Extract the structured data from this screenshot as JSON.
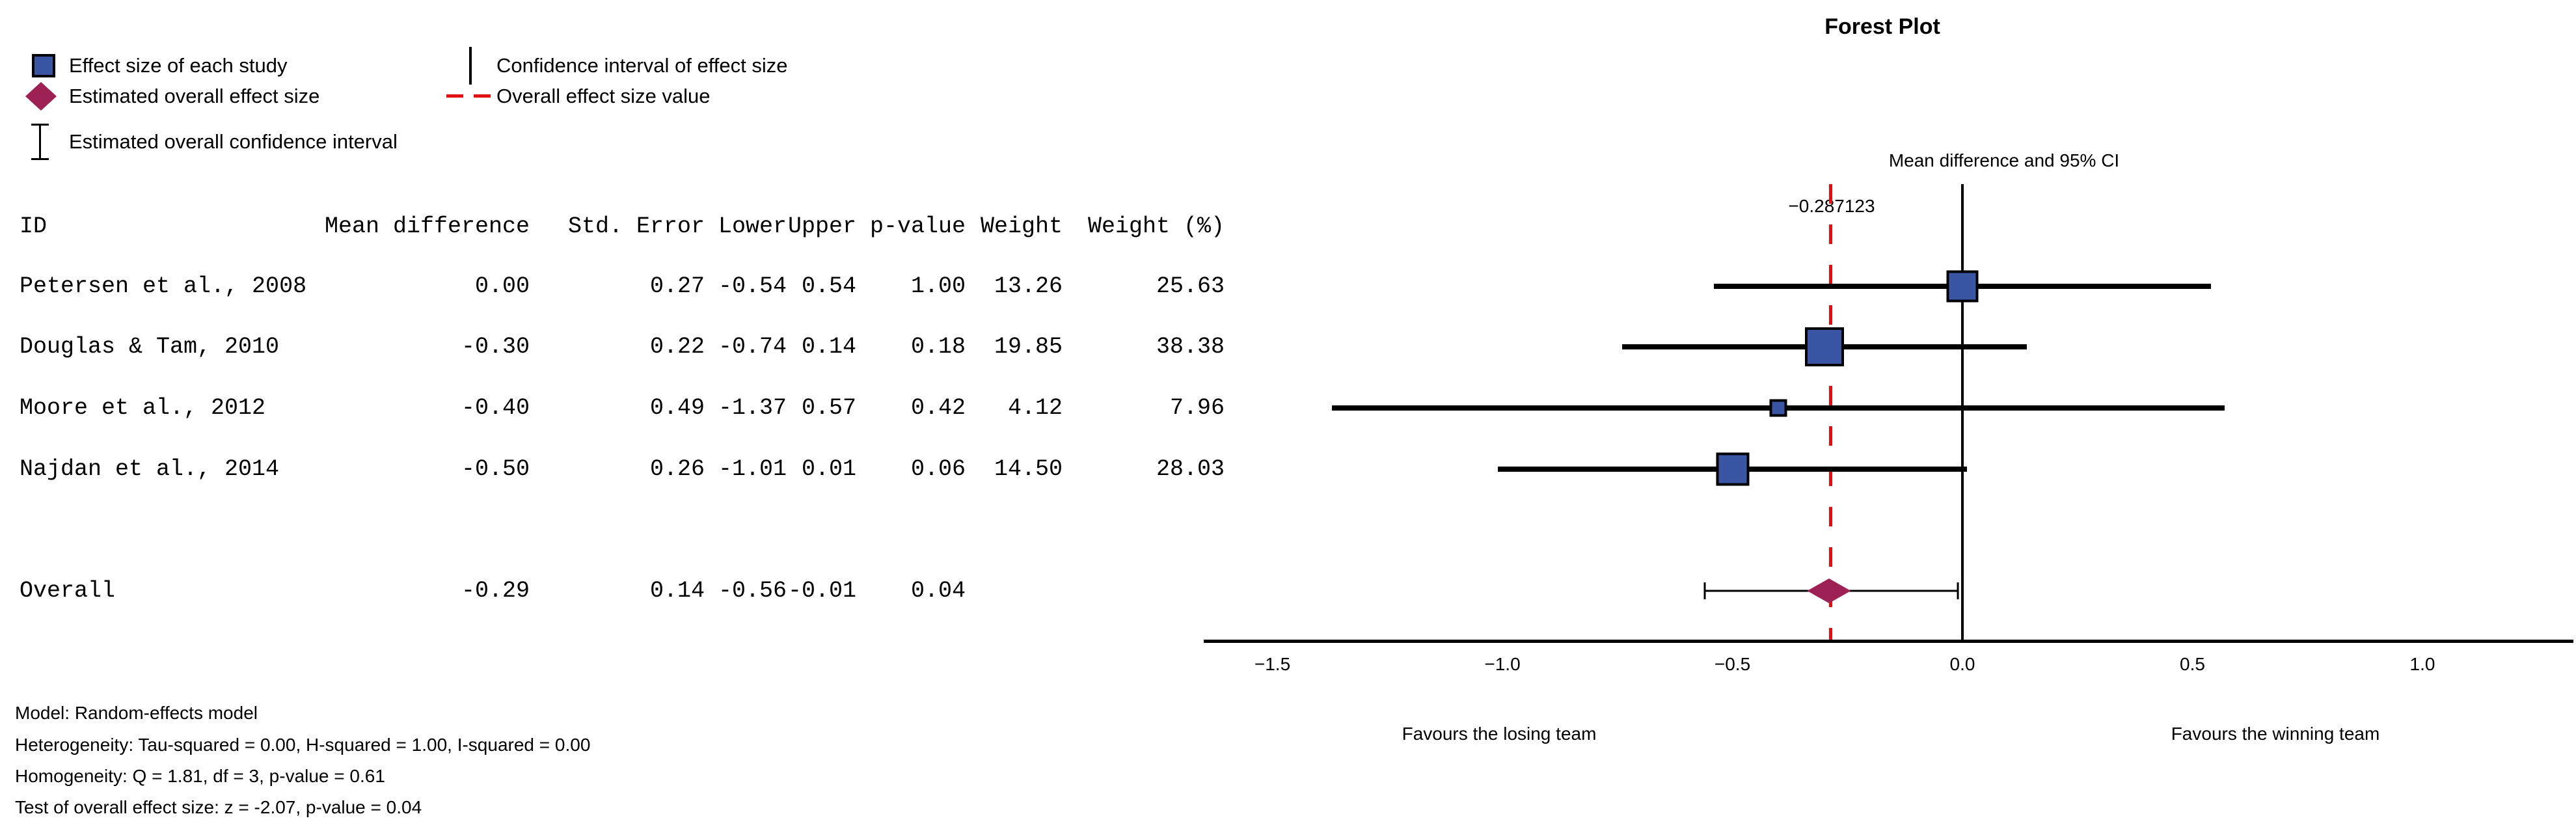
{
  "legend": {
    "left_items": [
      {
        "marker": "blue-square-marker",
        "label": "Effect size of each study"
      },
      {
        "marker": "crimson-diamond-marker",
        "label": "Estimated overall effect size"
      },
      {
        "marker": "ibeam-marker",
        "label": "Estimated overall confidence interval"
      }
    ],
    "right_items": [
      {
        "marker": "black-vline-marker",
        "label": "Confidence interval of effect size"
      },
      {
        "marker": "red-dash-marker",
        "label": "Overall effect size value"
      }
    ]
  },
  "table": {
    "headers": [
      "ID",
      "Mean difference",
      "Std. Error",
      "Lower",
      "Upper",
      "p-value",
      "Weight",
      "Weight (%)"
    ],
    "rows": [
      {
        "cells": [
          "Petersen et al., 2008",
          "0.00",
          "0.27",
          "-0.54",
          "0.54",
          "1.00",
          "13.26",
          "25.63"
        ]
      },
      {
        "cells": [
          "Douglas & Tam, 2010",
          "-0.30",
          "0.22",
          "-0.74",
          "0.14",
          "0.18",
          "19.85",
          "38.38"
        ]
      },
      {
        "cells": [
          "Moore et al., 2012",
          "-0.40",
          "0.49",
          "-1.37",
          "0.57",
          "0.42",
          "4.12",
          "7.96"
        ]
      },
      {
        "cells": [
          "Najdan et al., 2014",
          "-0.50",
          "0.26",
          "-1.01",
          "0.01",
          "0.06",
          "14.50",
          "28.03"
        ]
      }
    ],
    "overall_row": {
      "cells": [
        "Overall",
        "-0.29",
        "0.14",
        "-0.56",
        "-0.01",
        "0.04",
        "",
        ""
      ]
    }
  },
  "annotations": {
    "model": "Model: Random-effects model",
    "heterogeneity": "Heterogeneity: Tau-squared = 0.00, H-squared = 1.00, I-squared = 0.00",
    "homogeneity": "Homogeneity: Q = 1.81, df = 3, p-value = 0.61",
    "test": "Test of overall effect size: z = -2.07, p-value = 0.04"
  },
  "chart_data": {
    "type": "forest",
    "title": "Forest Plot",
    "axis_annotation": "Mean difference and 95% CI",
    "overall_value_label": "−0.287123",
    "overall_value": -0.287123,
    "x_ticks": [
      -1.5,
      -1.0,
      -0.5,
      0.0,
      0.5,
      1.0
    ],
    "x_tick_labels": [
      "−1.5",
      "−1.0",
      "−0.5",
      "0.0",
      "0.5",
      "1.0"
    ],
    "xlim": [
      -1.65,
      1.33
    ],
    "xlabel_left": "Favours the losing team",
    "xlabel_right": "Favours the winning team",
    "grid": false,
    "studies": [
      {
        "id": "Petersen et al., 2008",
        "mean": 0.0,
        "lower": -0.54,
        "upper": 0.54,
        "weight_pct": 25.63
      },
      {
        "id": "Douglas & Tam, 2010",
        "mean": -0.3,
        "lower": -0.74,
        "upper": 0.14,
        "weight_pct": 38.38
      },
      {
        "id": "Moore et al., 2012",
        "mean": -0.4,
        "lower": -1.37,
        "upper": 0.57,
        "weight_pct": 7.96
      },
      {
        "id": "Najdan et al., 2014",
        "mean": -0.5,
        "lower": -1.01,
        "upper": 0.01,
        "weight_pct": 28.03
      }
    ],
    "overall": {
      "mean": -0.29,
      "lower": -0.56,
      "upper": -0.01
    },
    "colors": {
      "effect_square": "#3B55A5",
      "overall_diamond": "#9E2155",
      "reference_line": "#E01010",
      "ink": "#000000"
    }
  }
}
